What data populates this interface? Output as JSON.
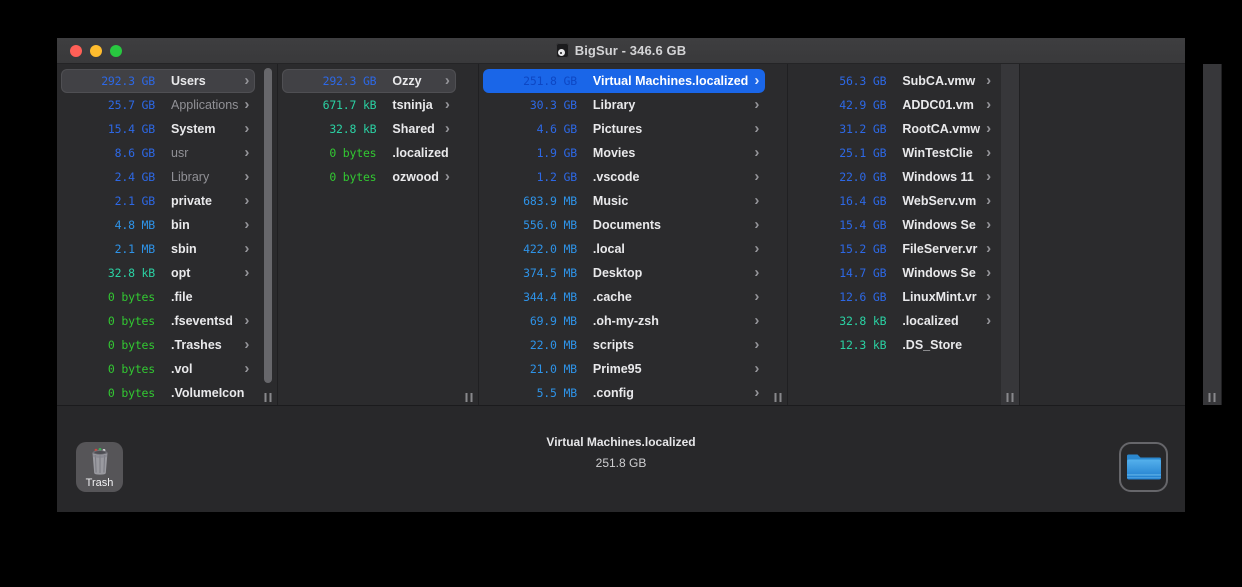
{
  "window": {
    "title": "BigSur - 346.6 GB"
  },
  "colors": {
    "accent_blue_selection": "#1a66e8",
    "size_gb": "#2d68e5",
    "size_mb": "#2e93e8",
    "size_kb": "#2bd1a3",
    "size_bytes": "#32c832",
    "traffic_red": "#ff5f57",
    "traffic_yellow": "#febc2e",
    "traffic_green": "#28c840"
  },
  "columns": [
    {
      "items": [
        {
          "size": "292.3 GB",
          "unit": "gb",
          "name": "Users",
          "selected": "gray",
          "dim": false,
          "chevron": true
        },
        {
          "size": "25.7 GB",
          "unit": "gb",
          "name": "Applications",
          "selected": null,
          "dim": true,
          "chevron": true
        },
        {
          "size": "15.4 GB",
          "unit": "gb",
          "name": "System",
          "selected": null,
          "dim": false,
          "chevron": true
        },
        {
          "size": "8.6 GB",
          "unit": "gb",
          "name": "usr",
          "selected": null,
          "dim": true,
          "chevron": true
        },
        {
          "size": "2.4 GB",
          "unit": "gb",
          "name": "Library",
          "selected": null,
          "dim": true,
          "chevron": true
        },
        {
          "size": "2.1 GB",
          "unit": "gb",
          "name": "private",
          "selected": null,
          "dim": false,
          "chevron": true
        },
        {
          "size": "4.8 MB",
          "unit": "mb",
          "name": "bin",
          "selected": null,
          "dim": false,
          "chevron": true
        },
        {
          "size": "2.1 MB",
          "unit": "mb",
          "name": "sbin",
          "selected": null,
          "dim": false,
          "chevron": true
        },
        {
          "size": "32.8 kB",
          "unit": "kb",
          "name": "opt",
          "selected": null,
          "dim": false,
          "chevron": true
        },
        {
          "size": "0 bytes",
          "unit": "b",
          "name": ".file",
          "selected": null,
          "dim": false,
          "chevron": false
        },
        {
          "size": "0 bytes",
          "unit": "b",
          "name": ".fseventsd",
          "selected": null,
          "dim": false,
          "chevron": true
        },
        {
          "size": "0 bytes",
          "unit": "b",
          "name": ".Trashes",
          "selected": null,
          "dim": false,
          "chevron": true
        },
        {
          "size": "0 bytes",
          "unit": "b",
          "name": ".vol",
          "selected": null,
          "dim": false,
          "chevron": true
        },
        {
          "size": "0 bytes",
          "unit": "b",
          "name": ".VolumeIcon",
          "selected": null,
          "dim": false,
          "chevron": false
        }
      ]
    },
    {
      "items": [
        {
          "size": "292.3 GB",
          "unit": "gb",
          "name": "Ozzy",
          "selected": "gray",
          "dim": false,
          "chevron": true
        },
        {
          "size": "671.7 kB",
          "unit": "kb",
          "name": "tsninja",
          "selected": null,
          "dim": false,
          "chevron": true
        },
        {
          "size": "32.8 kB",
          "unit": "kb",
          "name": "Shared",
          "selected": null,
          "dim": false,
          "chevron": true
        },
        {
          "size": "0 bytes",
          "unit": "b",
          "name": ".localized",
          "selected": null,
          "dim": false,
          "chevron": false
        },
        {
          "size": "0 bytes",
          "unit": "b",
          "name": "ozwood",
          "selected": null,
          "dim": false,
          "chevron": true
        }
      ]
    },
    {
      "items": [
        {
          "size": "251.8 GB",
          "unit": "gb",
          "name": "Virtual Machines.localized",
          "selected": "blue",
          "dim": false,
          "chevron": true
        },
        {
          "size": "30.3 GB",
          "unit": "gb",
          "name": "Library",
          "selected": null,
          "dim": false,
          "chevron": true
        },
        {
          "size": "4.6 GB",
          "unit": "gb",
          "name": "Pictures",
          "selected": null,
          "dim": false,
          "chevron": true
        },
        {
          "size": "1.9 GB",
          "unit": "gb",
          "name": "Movies",
          "selected": null,
          "dim": false,
          "chevron": true
        },
        {
          "size": "1.2 GB",
          "unit": "gb",
          "name": ".vscode",
          "selected": null,
          "dim": false,
          "chevron": true
        },
        {
          "size": "683.9 MB",
          "unit": "mb",
          "name": "Music",
          "selected": null,
          "dim": false,
          "chevron": true
        },
        {
          "size": "556.0 MB",
          "unit": "mb",
          "name": "Documents",
          "selected": null,
          "dim": false,
          "chevron": true
        },
        {
          "size": "422.0 MB",
          "unit": "mb",
          "name": ".local",
          "selected": null,
          "dim": false,
          "chevron": true
        },
        {
          "size": "374.5 MB",
          "unit": "mb",
          "name": "Desktop",
          "selected": null,
          "dim": false,
          "chevron": true
        },
        {
          "size": "344.4 MB",
          "unit": "mb",
          "name": ".cache",
          "selected": null,
          "dim": false,
          "chevron": true
        },
        {
          "size": "69.9 MB",
          "unit": "mb",
          "name": ".oh-my-zsh",
          "selected": null,
          "dim": false,
          "chevron": true
        },
        {
          "size": "22.0 MB",
          "unit": "mb",
          "name": "scripts",
          "selected": null,
          "dim": false,
          "chevron": true
        },
        {
          "size": "21.0 MB",
          "unit": "mb",
          "name": "Prime95",
          "selected": null,
          "dim": false,
          "chevron": true
        },
        {
          "size": "5.5 MB",
          "unit": "mb",
          "name": ".config",
          "selected": null,
          "dim": false,
          "chevron": true
        }
      ]
    },
    {
      "items": [
        {
          "size": "56.3 GB",
          "unit": "gb",
          "name": "SubCA.vmw",
          "selected": null,
          "dim": false,
          "chevron": true
        },
        {
          "size": "42.9 GB",
          "unit": "gb",
          "name": "ADDC01.vm",
          "selected": null,
          "dim": false,
          "chevron": true
        },
        {
          "size": "31.2 GB",
          "unit": "gb",
          "name": "RootCA.vmw",
          "selected": null,
          "dim": false,
          "chevron": true
        },
        {
          "size": "25.1 GB",
          "unit": "gb",
          "name": "WinTestClie",
          "selected": null,
          "dim": false,
          "chevron": true
        },
        {
          "size": "22.0 GB",
          "unit": "gb",
          "name": "Windows 11",
          "selected": null,
          "dim": false,
          "chevron": true
        },
        {
          "size": "16.4 GB",
          "unit": "gb",
          "name": "WebServ.vm",
          "selected": null,
          "dim": false,
          "chevron": true
        },
        {
          "size": "15.4 GB",
          "unit": "gb",
          "name": "Windows Se",
          "selected": null,
          "dim": false,
          "chevron": true
        },
        {
          "size": "15.2 GB",
          "unit": "gb",
          "name": "FileServer.vr",
          "selected": null,
          "dim": false,
          "chevron": true
        },
        {
          "size": "14.7 GB",
          "unit": "gb",
          "name": "Windows Se",
          "selected": null,
          "dim": false,
          "chevron": true
        },
        {
          "size": "12.6 GB",
          "unit": "gb",
          "name": "LinuxMint.vr",
          "selected": null,
          "dim": false,
          "chevron": true
        },
        {
          "size": "32.8 kB",
          "unit": "kb",
          "name": ".localized",
          "selected": null,
          "dim": false,
          "chevron": true
        },
        {
          "size": "12.3 kB",
          "unit": "kb",
          "name": ".DS_Store",
          "selected": null,
          "dim": false,
          "chevron": false
        }
      ]
    },
    {
      "items": []
    }
  ],
  "footer": {
    "trash_label": "Trash",
    "selected_name": "Virtual Machines.localized",
    "selected_size": "251.8 GB"
  }
}
